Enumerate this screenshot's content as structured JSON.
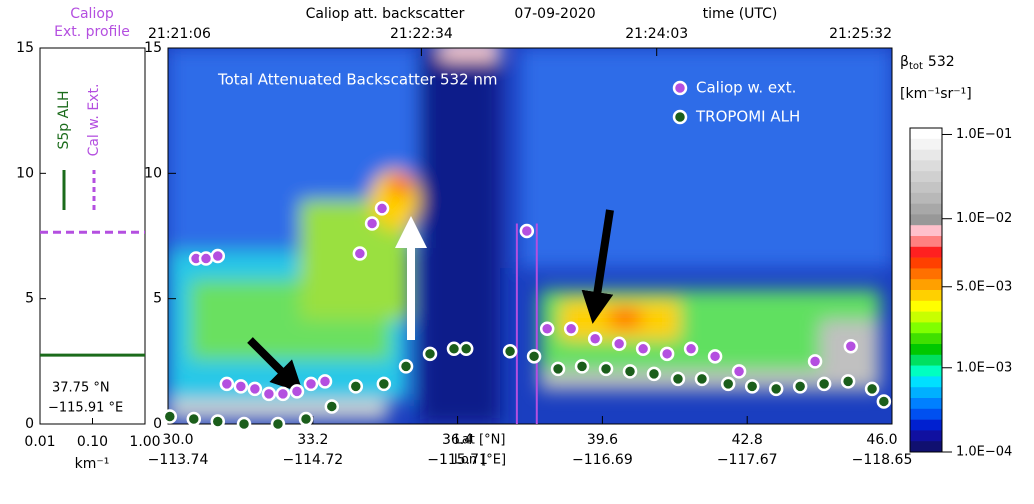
{
  "chart_data": [
    {
      "type": "line",
      "title": "Caliop",
      "subtitle": "Ext. profile",
      "xscale": "log",
      "xlim": [
        0.01,
        1
      ],
      "xticks": [
        {
          "value": 0.01,
          "label": "0.01"
        },
        {
          "value": 0.1,
          "label": "0.10"
        },
        {
          "value": 1,
          "label": "1.00"
        }
      ],
      "xlabel": "km⁻¹",
      "ylim": [
        0,
        15
      ],
      "yticks": [
        0,
        5,
        10,
        15
      ],
      "hlines": [
        {
          "name": "S5p ALH",
          "color": "#1b6b1b",
          "dash": false,
          "y": 2.75
        },
        {
          "name": "Cal w. Ext.",
          "color": "#b44fe0",
          "dash": true,
          "y": 7.65
        }
      ],
      "annotations": [
        "37.75 °N",
        "−115.91 °E"
      ]
    },
    {
      "type": "scatter",
      "title": "Caliop att. backscatter",
      "date": "07-09-2020",
      "top_axis_label": "time (UTC)",
      "annotation": "Total Attenuated Backscatter 532 nm",
      "xlim": [
        30,
        46
      ],
      "ylim": [
        0,
        15
      ],
      "yticks": [
        0,
        5,
        10,
        15
      ],
      "xticks": [
        {
          "value": 30,
          "label": "30.0"
        },
        33.2,
        36.4,
        39.6,
        42.8,
        {
          "value": 46,
          "label": "46.0"
        }
      ],
      "lon_labels": [
        "−113.74",
        "−114.72",
        "−115.71",
        "−116.69",
        "−117.67",
        "−118.65"
      ],
      "xlabel": "Lat [°N]",
      "xlabel2": "Lon [°E]",
      "top_ticks": [
        {
          "value": 30,
          "label": "21:21:06"
        },
        {
          "value": 35.6,
          "label": "21:22:34"
        },
        {
          "value": 40.8,
          "label": "21:24:03"
        },
        {
          "value": 46,
          "label": "21:25:32"
        }
      ],
      "vlines": [
        37.71,
        38.15
      ],
      "vline_color": "#b44fe0",
      "marker_edge": "#ffffff",
      "series": [
        {
          "name": "Caliop w. ext.",
          "color": "#b44fe0",
          "x": [
            30.62,
            30.84,
            31.1,
            31.3,
            31.61,
            31.92,
            32.23,
            32.54,
            32.85,
            33.16,
            33.47,
            34.24,
            34.51,
            34.73,
            37.93,
            38.38,
            38.91,
            39.44,
            39.97,
            40.5,
            41.03,
            41.56,
            42.09,
            42.62,
            44.3,
            45.09
          ],
          "values": [
            6.6,
            6.6,
            6.7,
            1.6,
            1.5,
            1.4,
            1.2,
            1.2,
            1.3,
            1.6,
            1.7,
            6.8,
            8.0,
            8.6,
            7.7,
            3.8,
            3.8,
            3.4,
            3.2,
            3.0,
            2.8,
            3.0,
            2.7,
            2.1,
            2.5,
            3.1
          ]
        },
        {
          "name": "TROPOMI ALH",
          "color": "#1b5e1b",
          "x": [
            30.04,
            30.57,
            31.1,
            31.68,
            32.43,
            33.05,
            33.62,
            34.15,
            34.77,
            35.26,
            35.79,
            36.32,
            36.59,
            37.56,
            38.09,
            38.62,
            39.15,
            39.68,
            40.21,
            40.74,
            41.27,
            41.8,
            42.38,
            42.91,
            43.44,
            43.97,
            44.5,
            45.03,
            45.56,
            45.82
          ],
          "values": [
            0.3,
            0.2,
            0.1,
            0.0,
            0.0,
            0.2,
            0.7,
            1.5,
            1.6,
            2.3,
            2.8,
            3.0,
            3.0,
            2.9,
            2.7,
            2.2,
            2.3,
            2.2,
            2.1,
            2.0,
            1.8,
            1.8,
            1.6,
            1.5,
            1.4,
            1.5,
            1.6,
            1.7,
            1.4,
            0.9
          ]
        }
      ],
      "colorbar": {
        "title": "β",
        "title_sub": "tot",
        "title_rest": "532",
        "unit": "[km⁻¹sr⁻¹]",
        "labels": [
          "1.0E−01",
          "1.0E−02",
          "5.0E−03",
          "1.0E−03",
          "1.0E−04"
        ],
        "colors": [
          "#ffffff",
          "#f4f4f4",
          "#e8e8e8",
          "#dcdcdc",
          "#d0d0d0",
          "#c4c4c4",
          "#b8b8b8",
          "#a8a8a8",
          "#989898",
          "#ffc0cb",
          "#ff8080",
          "#ff2020",
          "#ff4000",
          "#ff7000",
          "#ffa000",
          "#ffd000",
          "#ffff00",
          "#c8ff00",
          "#80ff00",
          "#40e000",
          "#00c800",
          "#00e060",
          "#00ffc0",
          "#00e0ff",
          "#00b0ff",
          "#0080ff",
          "#0050f0",
          "#0020d0",
          "#1010a0",
          "#101070"
        ]
      }
    }
  ]
}
